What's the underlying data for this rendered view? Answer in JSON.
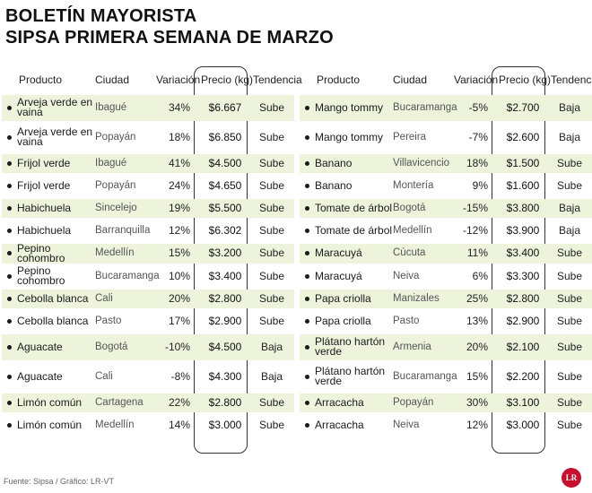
{
  "title_line1": "BOLETÍN MAYORISTA",
  "title_line2": "SIPSA PRIMERA SEMANA DE MARZO",
  "headers": {
    "producto": "Producto",
    "ciudad": "Ciudad",
    "variacion": "Variación",
    "precio": "Precio (kg)",
    "tendencia": "Tendencia"
  },
  "left_rows": [
    {
      "product": "Arveja verde en vaina",
      "city": "Ibagué",
      "variation": "34%",
      "price": "$6.667",
      "trend": "Sube",
      "tall": true,
      "hl": true
    },
    {
      "product": "Arveja verde en vaina",
      "city": "Popayán",
      "variation": "18%",
      "price": "$6.850",
      "trend": "Sube",
      "tall": true,
      "hl": false
    },
    {
      "product": "Frijol verde",
      "city": "Ibagué",
      "variation": "41%",
      "price": "$4.500",
      "trend": "Sube",
      "tall": false,
      "hl": true
    },
    {
      "product": "Frijol verde",
      "city": "Popayán",
      "variation": "24%",
      "price": "$4.650",
      "trend": "Sube",
      "tall": false,
      "hl": false
    },
    {
      "product": "Habichuela",
      "city": "Sincelejo",
      "variation": "19%",
      "price": "$5.500",
      "trend": "Sube",
      "tall": false,
      "hl": true
    },
    {
      "product": "Habichuela",
      "city": "Barranquilla",
      "variation": "12%",
      "price": "$6.302",
      "trend": "Sube",
      "tall": false,
      "hl": false
    },
    {
      "product": "Pepino cohombro",
      "city": "Medellín",
      "variation": "15%",
      "price": "$3.200",
      "trend": "Sube",
      "tall": false,
      "hl": true
    },
    {
      "product": "Pepino cohombro",
      "city": "Bucaramanga",
      "variation": "10%",
      "price": "$3.400",
      "trend": "Sube",
      "tall": false,
      "hl": false
    },
    {
      "product": "Cebolla blanca",
      "city": "Cali",
      "variation": "20%",
      "price": "$2.800",
      "trend": "Sube",
      "tall": false,
      "hl": true
    },
    {
      "product": "Cebolla blanca",
      "city": "Pasto",
      "variation": "17%",
      "price": "$2.900",
      "trend": "Sube",
      "tall": false,
      "hl": false
    },
    {
      "product": "Aguacate",
      "city": "Bogotá",
      "variation": "-10%",
      "price": "$4.500",
      "trend": "Baja",
      "tall": true,
      "hl": true
    },
    {
      "product": "Aguacate",
      "city": "Cali",
      "variation": "-8%",
      "price": "$4.300",
      "trend": "Baja",
      "tall": true,
      "hl": false
    },
    {
      "product": "Limón común",
      "city": "Cartagena",
      "variation": "22%",
      "price": "$2.800",
      "trend": "Sube",
      "tall": false,
      "hl": true
    },
    {
      "product": "Limón común",
      "city": "Medellín",
      "variation": "14%",
      "price": "$3.000",
      "trend": "Sube",
      "tall": false,
      "hl": false
    }
  ],
  "right_rows": [
    {
      "product": "Mango tommy",
      "city": "Bucaramanga",
      "variation": "-5%",
      "price": "$2.700",
      "trend": "Baja",
      "tall": true,
      "hl": true
    },
    {
      "product": "Mango tommy",
      "city": "Pereira",
      "variation": "-7%",
      "price": "$2.600",
      "trend": "Baja",
      "tall": true,
      "hl": false
    },
    {
      "product": "Banano",
      "city": "Villavicencio",
      "variation": "18%",
      "price": "$1.500",
      "trend": "Sube",
      "tall": false,
      "hl": true
    },
    {
      "product": "Banano",
      "city": "Montería",
      "variation": "9%",
      "price": "$1.600",
      "trend": "Sube",
      "tall": false,
      "hl": false
    },
    {
      "product": "Tomate de árbol",
      "city": "Bogotá",
      "variation": "-15%",
      "price": "$3.800",
      "trend": "Baja",
      "tall": false,
      "hl": true
    },
    {
      "product": "Tomate de árbol",
      "city": "Medellín",
      "variation": "-12%",
      "price": "$3.900",
      "trend": "Baja",
      "tall": false,
      "hl": false
    },
    {
      "product": "Maracuyá",
      "city": "Cúcuta",
      "variation": "11%",
      "price": "$3.400",
      "trend": "Sube",
      "tall": false,
      "hl": true
    },
    {
      "product": "Maracuyá",
      "city": "Neiva",
      "variation": "6%",
      "price": "$3.300",
      "trend": "Sube",
      "tall": false,
      "hl": false
    },
    {
      "product": "Papa criolla",
      "city": "Manizales",
      "variation": "25%",
      "price": "$2.800",
      "trend": "Sube",
      "tall": false,
      "hl": true
    },
    {
      "product": "Papa criolla",
      "city": "Pasto",
      "variation": "13%",
      "price": "$2.900",
      "trend": "Sube",
      "tall": false,
      "hl": false
    },
    {
      "product": "Plátano hartón verde",
      "city": "Armenia",
      "variation": "20%",
      "price": "$2.100",
      "trend": "Sube",
      "tall": true,
      "hl": true
    },
    {
      "product": "Plátano hartón verde",
      "city": "Bucaramanga",
      "variation": "15%",
      "price": "$2.200",
      "trend": "Sube",
      "tall": true,
      "hl": false
    },
    {
      "product": "Arracacha",
      "city": "Popayán",
      "variation": "30%",
      "price": "$3.100",
      "trend": "Sube",
      "tall": false,
      "hl": true
    },
    {
      "product": "Arracacha",
      "city": "Neiva",
      "variation": "12%",
      "price": "$3.000",
      "trend": "Sube",
      "tall": false,
      "hl": false
    }
  ],
  "source": "Fuente: Sipsa / Gráfico: LR-VT",
  "logo_text": "LR",
  "chart_data": {
    "type": "table",
    "columns": [
      "Producto",
      "Ciudad",
      "Variación",
      "Precio (kg)",
      "Tendencia"
    ],
    "rows": [
      [
        "Arveja verde en vaina",
        "Ibagué",
        "34%",
        "$6.667",
        "Sube"
      ],
      [
        "Arveja verde en vaina",
        "Popayán",
        "18%",
        "$6.850",
        "Sube"
      ],
      [
        "Frijol verde",
        "Ibagué",
        "41%",
        "$4.500",
        "Sube"
      ],
      [
        "Frijol verde",
        "Popayán",
        "24%",
        "$4.650",
        "Sube"
      ],
      [
        "Habichuela",
        "Sincelejo",
        "19%",
        "$5.500",
        "Sube"
      ],
      [
        "Habichuela",
        "Barranquilla",
        "12%",
        "$6.302",
        "Sube"
      ],
      [
        "Pepino cohombro",
        "Medellín",
        "15%",
        "$3.200",
        "Sube"
      ],
      [
        "Pepino cohombro",
        "Bucaramanga",
        "10%",
        "$3.400",
        "Sube"
      ],
      [
        "Cebolla blanca",
        "Cali",
        "20%",
        "$2.800",
        "Sube"
      ],
      [
        "Cebolla blanca",
        "Pasto",
        "17%",
        "$2.900",
        "Sube"
      ],
      [
        "Aguacate",
        "Bogotá",
        "-10%",
        "$4.500",
        "Baja"
      ],
      [
        "Aguacate",
        "Cali",
        "-8%",
        "$4.300",
        "Baja"
      ],
      [
        "Limón común",
        "Cartagena",
        "22%",
        "$2.800",
        "Sube"
      ],
      [
        "Limón común",
        "Medellín",
        "14%",
        "$3.000",
        "Sube"
      ],
      [
        "Mango tommy",
        "Bucaramanga",
        "-5%",
        "$2.700",
        "Baja"
      ],
      [
        "Mango tommy",
        "Pereira",
        "-7%",
        "$2.600",
        "Baja"
      ],
      [
        "Banano",
        "Villavicencio",
        "18%",
        "$1.500",
        "Sube"
      ],
      [
        "Banano",
        "Montería",
        "9%",
        "$1.600",
        "Sube"
      ],
      [
        "Tomate de árbol",
        "Bogotá",
        "-15%",
        "$3.800",
        "Baja"
      ],
      [
        "Tomate de árbol",
        "Medellín",
        "-12%",
        "$3.900",
        "Baja"
      ],
      [
        "Maracuyá",
        "Cúcuta",
        "11%",
        "$3.400",
        "Sube"
      ],
      [
        "Maracuyá",
        "Neiva",
        "6%",
        "$3.300",
        "Sube"
      ],
      [
        "Papa criolla",
        "Manizales",
        "25%",
        "$2.800",
        "Sube"
      ],
      [
        "Papa criolla",
        "Pasto",
        "13%",
        "$2.900",
        "Sube"
      ],
      [
        "Plátano hartón verde",
        "Armenia",
        "20%",
        "$2.100",
        "Sube"
      ],
      [
        "Plátano hartón verde",
        "Bucaramanga",
        "15%",
        "$2.200",
        "Sube"
      ],
      [
        "Arracacha",
        "Popayán",
        "30%",
        "$3.100",
        "Sube"
      ],
      [
        "Arracacha",
        "Neiva",
        "12%",
        "$3.000",
        "Sube"
      ]
    ],
    "highlight_color": "#eef3dc"
  }
}
